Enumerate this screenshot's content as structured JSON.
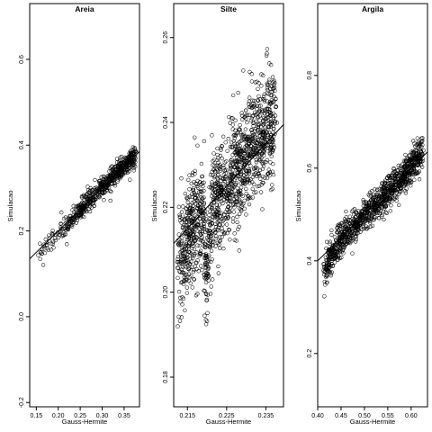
{
  "chart_data": [
    {
      "type": "scatter",
      "title": "Areia",
      "xlabel": "Gauss-Hermite",
      "ylabel": "Simulacao",
      "xlim": [
        0.135,
        0.385
      ],
      "ylim": [
        -0.21,
        0.73
      ],
      "xticks": [
        0.15,
        0.2,
        0.25,
        0.3,
        0.35
      ],
      "xtick_labels": [
        "0.15",
        "0.20",
        "0.25",
        "0.30",
        "0.35"
      ],
      "yticks": [
        -0.2,
        0.0,
        0.2,
        0.4,
        0.6
      ],
      "ytick_labels": [
        "-0.2",
        "0.0",
        "0.2",
        "0.4",
        "0.6"
      ],
      "grid": false,
      "fit_line": {
        "slope": 1.0,
        "intercept": 0.0
      },
      "cloud": {
        "x_range": [
          0.14,
          0.375
        ],
        "n_points": 650,
        "spread": 0.012,
        "skew_to_upper": true
      },
      "series": [
        {
          "x": [
            0.14,
            0.15,
            0.16,
            0.175,
            0.19,
            0.205,
            0.22,
            0.235,
            0.25,
            0.262,
            0.275,
            0.288,
            0.3,
            0.312,
            0.325,
            0.338,
            0.35,
            0.362,
            0.375
          ],
          "y": [
            0.128,
            0.135,
            0.15,
            0.168,
            0.185,
            0.205,
            0.218,
            0.232,
            0.247,
            0.262,
            0.276,
            0.29,
            0.302,
            0.314,
            0.327,
            0.338,
            0.35,
            0.362,
            0.373
          ]
        }
      ]
    },
    {
      "type": "scatter",
      "title": "Silte",
      "xlabel": "Gauss-Hermite",
      "ylabel": "Simulacao",
      "xlim": [
        0.2115,
        0.2395
      ],
      "ylim": [
        0.173,
        0.268
      ],
      "xticks": [
        0.215,
        0.225,
        0.235
      ],
      "xtick_labels": [
        "0.215",
        "0.225",
        "0.235"
      ],
      "yticks": [
        0.18,
        0.2,
        0.22,
        0.24,
        0.26
      ],
      "ytick_labels": [
        "0.18",
        "0.20",
        "0.22",
        "0.24",
        "0.26"
      ],
      "grid": false,
      "fit_line": {
        "slope": 1.0,
        "intercept": 0.0
      },
      "cloud": {
        "x_range": [
          0.2125,
          0.2375
        ],
        "n_points": 1400,
        "spread": 0.0065,
        "skew_to_upper": false
      },
      "series": [
        {
          "x": [
            0.213,
            0.215,
            0.217,
            0.219,
            0.22,
            0.221,
            0.223,
            0.225,
            0.227,
            0.229,
            0.231,
            0.233,
            0.235,
            0.237
          ],
          "y": [
            0.207,
            0.212,
            0.215,
            0.218,
            0.203,
            0.219,
            0.222,
            0.225,
            0.228,
            0.23,
            0.233,
            0.236,
            0.238,
            0.24
          ]
        }
      ]
    },
    {
      "type": "scatter",
      "title": "Argila",
      "xlabel": "Gauss-Hermite",
      "ylabel": "Simulacao",
      "xlim": [
        0.4,
        0.635
      ],
      "ylim": [
        0.085,
        0.955
      ],
      "xticks": [
        0.4,
        0.45,
        0.5,
        0.55,
        0.6
      ],
      "xtick_labels": [
        "0.40",
        "0.45",
        "0.50",
        "0.55",
        "0.60"
      ],
      "yticks": [
        0.2,
        0.4,
        0.6,
        0.8
      ],
      "ytick_labels": [
        "0.2",
        "0.4",
        "0.6",
        "0.8"
      ],
      "grid": false,
      "fit_line": {
        "slope": 1.0,
        "intercept": 0.0
      },
      "cloud": {
        "x_range": [
          0.415,
          0.625
        ],
        "n_points": 1100,
        "spread": 0.018,
        "skew_to_upper": false
      },
      "series": [
        {
          "x": [
            0.415,
            0.425,
            0.44,
            0.455,
            0.47,
            0.485,
            0.5,
            0.515,
            0.53,
            0.545,
            0.56,
            0.575,
            0.59,
            0.605,
            0.62
          ],
          "y": [
            0.375,
            0.405,
            0.43,
            0.452,
            0.468,
            0.482,
            0.5,
            0.512,
            0.528,
            0.545,
            0.56,
            0.575,
            0.59,
            0.612,
            0.628
          ]
        }
      ]
    }
  ]
}
